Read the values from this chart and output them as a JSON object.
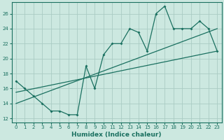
{
  "xlabel": "Humidex (Indice chaleur)",
  "ylabel": "",
  "bg_color": "#cce8e0",
  "grid_color": "#aaccc4",
  "line_color": "#1a7060",
  "xlim": [
    -0.5,
    23.5
  ],
  "ylim": [
    11.5,
    27.5
  ],
  "xticks": [
    0,
    1,
    2,
    3,
    4,
    5,
    6,
    7,
    8,
    9,
    10,
    11,
    12,
    13,
    14,
    15,
    16,
    17,
    18,
    19,
    20,
    21,
    22,
    23
  ],
  "yticks": [
    12,
    14,
    16,
    18,
    20,
    22,
    24,
    26
  ],
  "curve1_x": [
    0,
    1,
    2,
    3,
    4,
    5,
    6,
    7,
    8,
    9,
    10,
    11,
    12,
    13,
    14,
    15,
    16,
    17,
    18,
    19,
    20,
    21,
    22,
    23
  ],
  "curve1_y": [
    17.0,
    16.0,
    15.0,
    14.0,
    13.0,
    13.0,
    12.5,
    12.5,
    19.0,
    16.0,
    20.5,
    22.0,
    22.0,
    24.0,
    23.5,
    21.0,
    26.0,
    27.0,
    24.0,
    24.0,
    24.0,
    25.0,
    24.0,
    21.0
  ],
  "line1_x": [
    0,
    23
  ],
  "line1_y": [
    15.5,
    21.0
  ],
  "line2_x": [
    0,
    23
  ],
  "line2_y": [
    14.0,
    24.0
  ]
}
